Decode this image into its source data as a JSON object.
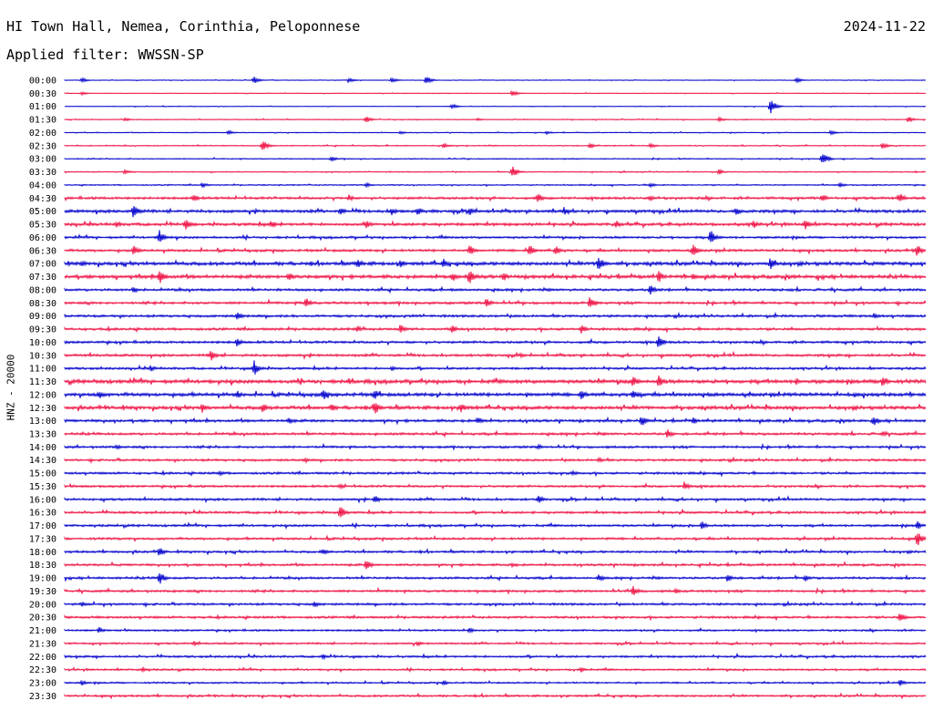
{
  "header": {
    "station": "HI Town Hall, Nemea, Corinthia, Peloponnese",
    "date": "2024-11-22",
    "filter": "Applied filter: WWSSN-SP"
  },
  "channel_label": "HNZ - 20000",
  "colors": {
    "blue": "#0000cc",
    "red": "#ee1144",
    "text": "#000000",
    "background": "#ffffff"
  },
  "chart_data": {
    "type": "helicorder",
    "rows": [
      {
        "label": "00:00",
        "color": "blue",
        "noise": 0.3,
        "events": [
          [
            0.02,
            3
          ],
          [
            0.22,
            4
          ],
          [
            0.33,
            3
          ],
          [
            0.38,
            3
          ],
          [
            0.42,
            5
          ],
          [
            0.85,
            3
          ]
        ]
      },
      {
        "label": "00:30",
        "color": "red",
        "noise": 0.3,
        "events": [
          [
            0.02,
            2
          ],
          [
            0.52,
            4
          ]
        ]
      },
      {
        "label": "01:00",
        "color": "blue",
        "noise": 0.3,
        "events": [
          [
            0.45,
            3
          ],
          [
            0.82,
            9
          ]
        ]
      },
      {
        "label": "01:30",
        "color": "red",
        "noise": 0.4,
        "events": [
          [
            0.07,
            2
          ],
          [
            0.35,
            4
          ],
          [
            0.48,
            2
          ],
          [
            0.76,
            3
          ],
          [
            0.98,
            4
          ]
        ]
      },
      {
        "label": "02:00",
        "color": "blue",
        "noise": 0.4,
        "events": [
          [
            0.19,
            3
          ],
          [
            0.39,
            2
          ],
          [
            0.56,
            2
          ],
          [
            0.89,
            3
          ]
        ]
      },
      {
        "label": "02:30",
        "color": "red",
        "noise": 0.5,
        "events": [
          [
            0.23,
            8
          ],
          [
            0.44,
            3
          ],
          [
            0.61,
            3
          ],
          [
            0.68,
            3
          ],
          [
            0.95,
            4
          ]
        ]
      },
      {
        "label": "03:00",
        "color": "blue",
        "noise": 0.5,
        "events": [
          [
            0.31,
            3
          ],
          [
            0.88,
            9
          ]
        ]
      },
      {
        "label": "03:30",
        "color": "red",
        "noise": 0.5,
        "events": [
          [
            0.07,
            3
          ],
          [
            0.52,
            7
          ],
          [
            0.76,
            3
          ]
        ]
      },
      {
        "label": "04:00",
        "color": "blue",
        "noise": 0.6,
        "events": [
          [
            0.16,
            3
          ],
          [
            0.35,
            3
          ],
          [
            0.68,
            3
          ],
          [
            0.9,
            3
          ]
        ]
      },
      {
        "label": "04:30",
        "color": "red",
        "noise": 1.2,
        "events": [
          [
            0.15,
            5
          ],
          [
            0.33,
            4
          ],
          [
            0.55,
            6
          ],
          [
            0.68,
            4
          ],
          [
            0.88,
            5
          ],
          [
            0.97,
            6
          ]
        ]
      },
      {
        "label": "05:00",
        "color": "blue",
        "noise": 1.4,
        "events": [
          [
            0.08,
            9
          ],
          [
            0.32,
            5
          ],
          [
            0.38,
            5
          ],
          [
            0.41,
            5
          ],
          [
            0.47,
            5
          ],
          [
            0.58,
            5
          ],
          [
            0.78,
            5
          ]
        ]
      },
      {
        "label": "05:30",
        "color": "red",
        "noise": 1.4,
        "events": [
          [
            0.06,
            4
          ],
          [
            0.14,
            7
          ],
          [
            0.24,
            5
          ],
          [
            0.35,
            5
          ],
          [
            0.64,
            5
          ],
          [
            0.8,
            5
          ],
          [
            0.86,
            6
          ]
        ]
      },
      {
        "label": "06:00",
        "color": "blue",
        "noise": 1.1,
        "events": [
          [
            0.11,
            9
          ],
          [
            0.75,
            10
          ]
        ]
      },
      {
        "label": "06:30",
        "color": "red",
        "noise": 1.2,
        "events": [
          [
            0.08,
            7
          ],
          [
            0.47,
            7
          ],
          [
            0.54,
            7
          ],
          [
            0.57,
            6
          ],
          [
            0.73,
            7
          ],
          [
            0.99,
            8
          ]
        ]
      },
      {
        "label": "07:00",
        "color": "blue",
        "noise": 1.7,
        "events": [
          [
            0.02,
            4
          ],
          [
            0.34,
            6
          ],
          [
            0.39,
            5
          ],
          [
            0.44,
            6
          ],
          [
            0.62,
            9
          ],
          [
            0.82,
            8
          ]
        ]
      },
      {
        "label": "07:30",
        "color": "red",
        "noise": 1.7,
        "events": [
          [
            0.11,
            10
          ],
          [
            0.26,
            6
          ],
          [
            0.45,
            6
          ],
          [
            0.47,
            9
          ],
          [
            0.51,
            5
          ],
          [
            0.69,
            7
          ],
          [
            0.73,
            5
          ]
        ]
      },
      {
        "label": "08:00",
        "color": "blue",
        "noise": 1.2,
        "events": [
          [
            0.08,
            4
          ],
          [
            0.68,
            7
          ]
        ]
      },
      {
        "label": "08:30",
        "color": "red",
        "noise": 1.2,
        "events": [
          [
            0.28,
            7
          ],
          [
            0.49,
            6
          ],
          [
            0.61,
            8
          ]
        ]
      },
      {
        "label": "09:00",
        "color": "blue",
        "noise": 1.2,
        "events": [
          [
            0.2,
            6
          ],
          [
            0.94,
            4
          ]
        ]
      },
      {
        "label": "09:30",
        "color": "red",
        "noise": 1.2,
        "events": [
          [
            0.34,
            4
          ],
          [
            0.39,
            6
          ],
          [
            0.45,
            5
          ],
          [
            0.6,
            5
          ]
        ]
      },
      {
        "label": "10:00",
        "color": "blue",
        "noise": 1.2,
        "events": [
          [
            0.2,
            5
          ],
          [
            0.69,
            8
          ]
        ]
      },
      {
        "label": "10:30",
        "color": "red",
        "noise": 1.2,
        "events": [
          [
            0.17,
            7
          ],
          [
            0.53,
            3
          ]
        ]
      },
      {
        "label": "11:00",
        "color": "blue",
        "noise": 1.1,
        "events": [
          [
            0.1,
            4
          ],
          [
            0.22,
            9
          ],
          [
            0.38,
            3
          ]
        ]
      },
      {
        "label": "11:30",
        "color": "red",
        "noise": 1.8,
        "events": [
          [
            0.33,
            4
          ],
          [
            0.66,
            7
          ],
          [
            0.69,
            7
          ],
          [
            0.85,
            4
          ],
          [
            0.95,
            8
          ]
        ]
      },
      {
        "label": "12:00",
        "color": "blue",
        "noise": 1.7,
        "events": [
          [
            0.04,
            5
          ],
          [
            0.2,
            5
          ],
          [
            0.3,
            7
          ],
          [
            0.36,
            6
          ],
          [
            0.6,
            6
          ],
          [
            0.66,
            7
          ]
        ]
      },
      {
        "label": "12:30",
        "color": "red",
        "noise": 1.7,
        "events": [
          [
            0.16,
            6
          ],
          [
            0.23,
            6
          ],
          [
            0.31,
            5
          ],
          [
            0.36,
            9
          ],
          [
            0.46,
            6
          ]
        ]
      },
      {
        "label": "13:00",
        "color": "blue",
        "noise": 1.3,
        "events": [
          [
            0.26,
            4
          ],
          [
            0.48,
            5
          ],
          [
            0.67,
            7
          ],
          [
            0.73,
            4
          ],
          [
            0.94,
            6
          ]
        ]
      },
      {
        "label": "13:30",
        "color": "red",
        "noise": 1.2,
        "events": [
          [
            0.7,
            6
          ],
          [
            0.95,
            3
          ]
        ]
      },
      {
        "label": "14:00",
        "color": "blue",
        "noise": 1.1,
        "events": [
          [
            0.06,
            3
          ],
          [
            0.55,
            3
          ]
        ]
      },
      {
        "label": "14:30",
        "color": "red",
        "noise": 1.1,
        "events": [
          [
            0.28,
            3
          ],
          [
            0.62,
            3
          ]
        ]
      },
      {
        "label": "15:00",
        "color": "blue",
        "noise": 1.1,
        "events": [
          [
            0.18,
            3
          ],
          [
            0.59,
            3
          ]
        ]
      },
      {
        "label": "15:30",
        "color": "red",
        "noise": 1.1,
        "events": [
          [
            0.32,
            3
          ],
          [
            0.72,
            6
          ]
        ]
      },
      {
        "label": "16:00",
        "color": "blue",
        "noise": 1.1,
        "events": [
          [
            0.36,
            5
          ],
          [
            0.55,
            5
          ]
        ]
      },
      {
        "label": "16:30",
        "color": "red",
        "noise": 1.1,
        "events": [
          [
            0.32,
            8
          ]
        ]
      },
      {
        "label": "17:00",
        "color": "blue",
        "noise": 1.1,
        "events": [
          [
            0.74,
            5
          ],
          [
            0.99,
            5
          ]
        ]
      },
      {
        "label": "17:30",
        "color": "red",
        "noise": 1.1,
        "events": [
          [
            0.99,
            10
          ]
        ]
      },
      {
        "label": "18:00",
        "color": "blue",
        "noise": 1.1,
        "events": [
          [
            0.11,
            6
          ],
          [
            0.3,
            4
          ]
        ]
      },
      {
        "label": "18:30",
        "color": "red",
        "noise": 1.1,
        "events": [
          [
            0.35,
            7
          ],
          [
            0.52,
            3
          ]
        ]
      },
      {
        "label": "19:00",
        "color": "blue",
        "noise": 1.1,
        "events": [
          [
            0.11,
            8
          ],
          [
            0.62,
            4
          ],
          [
            0.77,
            5
          ],
          [
            0.86,
            4
          ]
        ]
      },
      {
        "label": "19:30",
        "color": "red",
        "noise": 1.1,
        "events": [
          [
            0.66,
            6
          ],
          [
            0.71,
            3
          ]
        ]
      },
      {
        "label": "20:00",
        "color": "blue",
        "noise": 1.1,
        "events": [
          [
            0.02,
            3
          ],
          [
            0.29,
            4
          ]
        ]
      },
      {
        "label": "20:30",
        "color": "red",
        "noise": 1.1,
        "events": [
          [
            0.97,
            6
          ]
        ]
      },
      {
        "label": "21:00",
        "color": "blue",
        "noise": 0.9,
        "events": [
          [
            0.04,
            4
          ],
          [
            0.47,
            3
          ]
        ]
      },
      {
        "label": "21:30",
        "color": "red",
        "noise": 0.9,
        "events": [
          [
            0.15,
            3
          ],
          [
            0.41,
            3
          ]
        ]
      },
      {
        "label": "22:00",
        "color": "blue",
        "noise": 1.0,
        "events": [
          [
            0.3,
            3
          ]
        ]
      },
      {
        "label": "22:30",
        "color": "red",
        "noise": 0.9,
        "events": [
          [
            0.09,
            3
          ],
          [
            0.6,
            3
          ]
        ]
      },
      {
        "label": "23:00",
        "color": "blue",
        "noise": 0.8,
        "events": [
          [
            0.02,
            3
          ],
          [
            0.44,
            3
          ],
          [
            0.97,
            4
          ]
        ]
      },
      {
        "label": "23:30",
        "color": "red",
        "noise": 1.0,
        "events": []
      }
    ]
  }
}
